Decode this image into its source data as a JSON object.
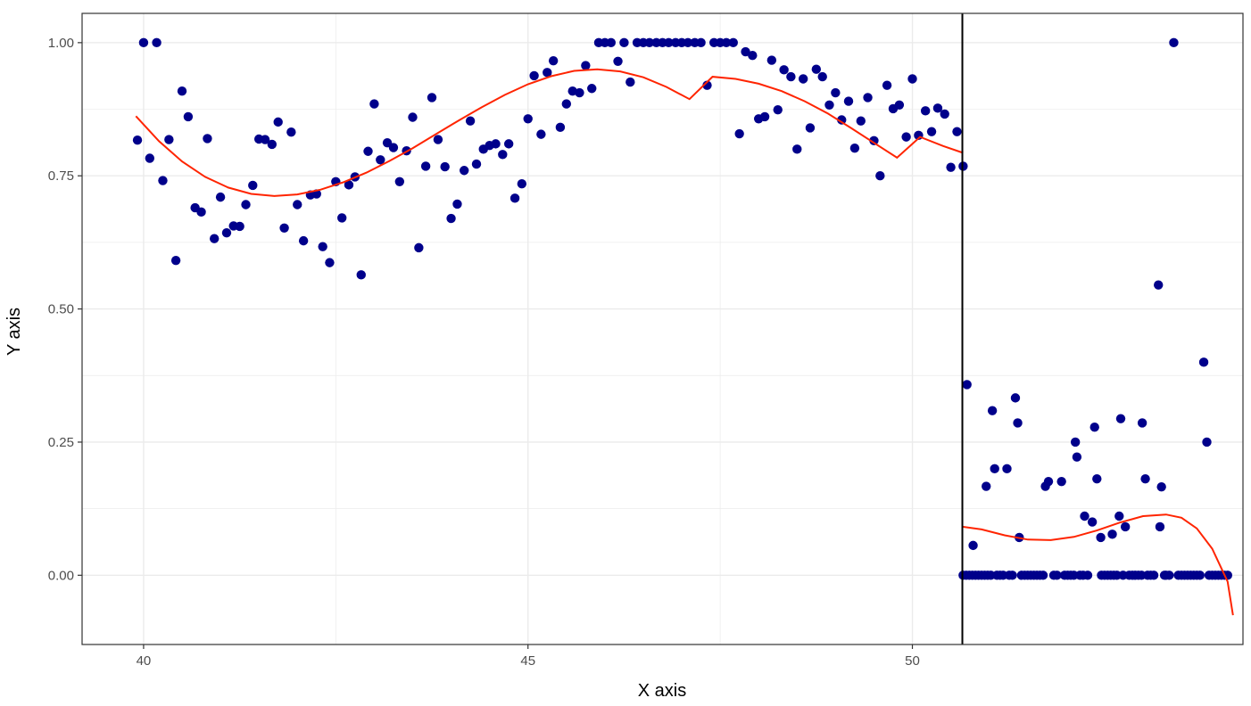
{
  "chart_data": {
    "type": "scatter",
    "title": "",
    "xlabel": "X axis",
    "ylabel": "Y axis",
    "xlim": [
      39.2,
      54.3
    ],
    "ylim": [
      -0.13,
      1.055
    ],
    "x_ticks": [
      40,
      45,
      50
    ],
    "x_tick_labels": [
      "40",
      "45",
      "50"
    ],
    "y_ticks": [
      0,
      0.25,
      0.5,
      0.75,
      1.0
    ],
    "y_tick_labels": [
      "0.00",
      "0.25",
      "0.50",
      "0.75",
      "1.00"
    ],
    "grid": true,
    "cutoff_x": 50.65,
    "colors": {
      "points": "#00008B",
      "fit_line": "#FF2400",
      "cutoff_line": "#000000",
      "grid": "#EBEBEB",
      "panel_border": "#333333"
    },
    "points": [
      [
        39.92,
        0.817
      ],
      [
        40.0,
        1.0
      ],
      [
        40.08,
        0.783
      ],
      [
        40.17,
        1.0
      ],
      [
        40.25,
        0.741
      ],
      [
        40.33,
        0.818
      ],
      [
        40.42,
        0.591
      ],
      [
        40.5,
        0.909
      ],
      [
        40.58,
        0.861
      ],
      [
        40.67,
        0.69
      ],
      [
        40.75,
        0.682
      ],
      [
        40.83,
        0.82
      ],
      [
        40.92,
        0.632
      ],
      [
        41.0,
        0.71
      ],
      [
        41.08,
        0.643
      ],
      [
        41.17,
        0.656
      ],
      [
        41.25,
        0.655
      ],
      [
        41.33,
        0.696
      ],
      [
        41.42,
        0.732
      ],
      [
        41.5,
        0.819
      ],
      [
        41.58,
        0.818
      ],
      [
        41.67,
        0.809
      ],
      [
        41.75,
        0.851
      ],
      [
        41.83,
        0.652
      ],
      [
        41.92,
        0.832
      ],
      [
        42.0,
        0.696
      ],
      [
        42.08,
        0.628
      ],
      [
        42.17,
        0.714
      ],
      [
        42.25,
        0.716
      ],
      [
        42.33,
        0.617
      ],
      [
        42.42,
        0.587
      ],
      [
        42.5,
        0.739
      ],
      [
        42.58,
        0.671
      ],
      [
        42.67,
        0.733
      ],
      [
        42.75,
        0.748
      ],
      [
        42.83,
        0.564
      ],
      [
        42.92,
        0.796
      ],
      [
        43.0,
        0.885
      ],
      [
        43.08,
        0.78
      ],
      [
        43.17,
        0.812
      ],
      [
        43.25,
        0.803
      ],
      [
        43.33,
        0.739
      ],
      [
        43.42,
        0.797
      ],
      [
        43.5,
        0.86
      ],
      [
        43.58,
        0.615
      ],
      [
        43.67,
        0.768
      ],
      [
        43.75,
        0.897
      ],
      [
        43.83,
        0.818
      ],
      [
        43.92,
        0.767
      ],
      [
        44.0,
        0.67
      ],
      [
        44.08,
        0.697
      ],
      [
        44.17,
        0.76
      ],
      [
        44.25,
        0.853
      ],
      [
        44.33,
        0.772
      ],
      [
        44.42,
        0.8
      ],
      [
        44.5,
        0.807
      ],
      [
        44.58,
        0.81
      ],
      [
        44.67,
        0.79
      ],
      [
        44.75,
        0.81
      ],
      [
        44.83,
        0.708
      ],
      [
        44.92,
        0.735
      ],
      [
        45.0,
        0.857
      ],
      [
        45.08,
        0.938
      ],
      [
        45.17,
        0.828
      ],
      [
        45.25,
        0.944
      ],
      [
        45.33,
        0.966
      ],
      [
        45.42,
        0.841
      ],
      [
        45.5,
        0.885
      ],
      [
        45.58,
        0.909
      ],
      [
        45.67,
        0.906
      ],
      [
        45.75,
        0.957
      ],
      [
        45.83,
        0.914
      ],
      [
        45.92,
        1.0
      ],
      [
        46.0,
        1.0
      ],
      [
        46.08,
        1.0
      ],
      [
        46.17,
        0.965
      ],
      [
        46.25,
        1.0
      ],
      [
        46.33,
        0.926
      ],
      [
        46.42,
        1.0
      ],
      [
        46.5,
        1.0
      ],
      [
        46.58,
        1.0
      ],
      [
        46.67,
        1.0
      ],
      [
        46.75,
        1.0
      ],
      [
        46.83,
        1.0
      ],
      [
        46.92,
        1.0
      ],
      [
        47.0,
        1.0
      ],
      [
        47.08,
        1.0
      ],
      [
        47.17,
        1.0
      ],
      [
        47.25,
        1.0
      ],
      [
        47.33,
        0.92
      ],
      [
        47.42,
        1.0
      ],
      [
        47.5,
        1.0
      ],
      [
        47.58,
        1.0
      ],
      [
        47.67,
        1.0
      ],
      [
        47.75,
        0.829
      ],
      [
        47.83,
        0.983
      ],
      [
        47.92,
        0.976
      ],
      [
        48.0,
        0.857
      ],
      [
        48.08,
        0.861
      ],
      [
        48.17,
        0.967
      ],
      [
        48.25,
        0.874
      ],
      [
        48.33,
        0.949
      ],
      [
        48.42,
        0.936
      ],
      [
        48.5,
        0.8
      ],
      [
        48.58,
        0.932
      ],
      [
        48.67,
        0.84
      ],
      [
        48.75,
        0.95
      ],
      [
        48.83,
        0.936
      ],
      [
        48.92,
        0.883
      ],
      [
        49.0,
        0.906
      ],
      [
        49.08,
        0.855
      ],
      [
        49.17,
        0.89
      ],
      [
        49.25,
        0.802
      ],
      [
        49.33,
        0.853
      ],
      [
        49.42,
        0.897
      ],
      [
        49.5,
        0.816
      ],
      [
        49.58,
        0.75
      ],
      [
        49.67,
        0.92
      ],
      [
        49.75,
        0.876
      ],
      [
        49.83,
        0.883
      ],
      [
        49.92,
        0.823
      ],
      [
        50.0,
        0.932
      ],
      [
        50.08,
        0.826
      ],
      [
        50.17,
        0.872
      ],
      [
        50.25,
        0.833
      ],
      [
        50.33,
        0.877
      ],
      [
        50.42,
        0.866
      ],
      [
        50.5,
        0.766
      ],
      [
        50.58,
        0.833
      ],
      [
        50.66,
        0.768
      ],
      [
        50.71,
        0.358
      ],
      [
        50.79,
        0.056
      ],
      [
        50.96,
        0.167
      ],
      [
        51.04,
        0.309
      ],
      [
        51.07,
        0.2
      ],
      [
        51.23,
        0.2
      ],
      [
        51.34,
        0.333
      ],
      [
        51.37,
        0.286
      ],
      [
        51.39,
        0.071
      ],
      [
        51.73,
        0.167
      ],
      [
        51.77,
        0.176
      ],
      [
        51.94,
        0.176
      ],
      [
        52.12,
        0.25
      ],
      [
        52.14,
        0.222
      ],
      [
        52.24,
        0.111
      ],
      [
        52.34,
        0.1
      ],
      [
        52.37,
        0.278
      ],
      [
        52.4,
        0.181
      ],
      [
        52.45,
        0.071
      ],
      [
        52.6,
        0.077
      ],
      [
        52.69,
        0.111
      ],
      [
        52.71,
        0.294
      ],
      [
        52.77,
        0.091
      ],
      [
        52.99,
        0.286
      ],
      [
        53.03,
        0.181
      ],
      [
        53.2,
        0.545
      ],
      [
        53.22,
        0.091
      ],
      [
        53.24,
        0.166
      ],
      [
        53.4,
        1.0
      ],
      [
        53.79,
        0.4
      ],
      [
        53.83,
        0.25
      ]
    ],
    "zero_points_x": [
      50.66,
      50.7,
      50.74,
      50.78,
      50.82,
      50.86,
      50.9,
      50.94,
      50.98,
      51.02,
      51.1,
      51.14,
      51.18,
      51.26,
      51.3,
      51.42,
      51.46,
      51.5,
      51.54,
      51.58,
      51.62,
      51.66,
      51.7,
      51.84,
      51.88,
      51.98,
      52.02,
      52.06,
      52.1,
      52.18,
      52.22,
      52.28,
      52.46,
      52.5,
      52.54,
      52.58,
      52.62,
      52.66,
      52.74,
      52.82,
      52.86,
      52.9,
      52.94,
      52.98,
      53.06,
      53.1,
      53.14,
      53.28,
      53.3,
      53.34,
      53.46,
      53.5,
      53.54,
      53.58,
      53.62,
      53.66,
      53.7,
      53.74,
      53.86,
      53.9,
      53.94,
      53.98,
      54.02,
      54.06,
      54.1
    ],
    "fit_left": [
      [
        39.9,
        0.862
      ],
      [
        40.2,
        0.815
      ],
      [
        40.5,
        0.777
      ],
      [
        40.8,
        0.748
      ],
      [
        41.1,
        0.728
      ],
      [
        41.4,
        0.716
      ],
      [
        41.7,
        0.712
      ],
      [
        42.0,
        0.715
      ],
      [
        42.3,
        0.724
      ],
      [
        42.6,
        0.738
      ],
      [
        42.9,
        0.756
      ],
      [
        43.2,
        0.778
      ],
      [
        43.5,
        0.802
      ],
      [
        43.8,
        0.828
      ],
      [
        44.1,
        0.854
      ],
      [
        44.4,
        0.879
      ],
      [
        44.7,
        0.902
      ],
      [
        45.0,
        0.922
      ],
      [
        45.3,
        0.937
      ],
      [
        45.6,
        0.947
      ],
      [
        45.9,
        0.95
      ],
      [
        46.2,
        0.946
      ],
      [
        46.5,
        0.935
      ],
      [
        46.8,
        0.917
      ],
      [
        47.1,
        0.894
      ],
      [
        47.4,
        0.936
      ],
      [
        47.7,
        0.932
      ],
      [
        48.0,
        0.923
      ],
      [
        48.3,
        0.909
      ],
      [
        48.6,
        0.89
      ],
      [
        48.9,
        0.867
      ],
      [
        49.2,
        0.84
      ],
      [
        49.5,
        0.812
      ],
      [
        49.8,
        0.784
      ],
      [
        50.1,
        0.823
      ],
      [
        50.4,
        0.806
      ],
      [
        50.66,
        0.793
      ]
    ],
    "fit_right": [
      [
        50.66,
        0.091
      ],
      [
        50.9,
        0.086
      ],
      [
        51.2,
        0.075
      ],
      [
        51.5,
        0.067
      ],
      [
        51.8,
        0.066
      ],
      [
        52.1,
        0.072
      ],
      [
        52.4,
        0.084
      ],
      [
        52.7,
        0.099
      ],
      [
        53.0,
        0.111
      ],
      [
        53.3,
        0.114
      ],
      [
        53.5,
        0.108
      ],
      [
        53.7,
        0.088
      ],
      [
        53.9,
        0.05
      ],
      [
        54.1,
        -0.012
      ],
      [
        54.17,
        -0.075
      ]
    ]
  }
}
